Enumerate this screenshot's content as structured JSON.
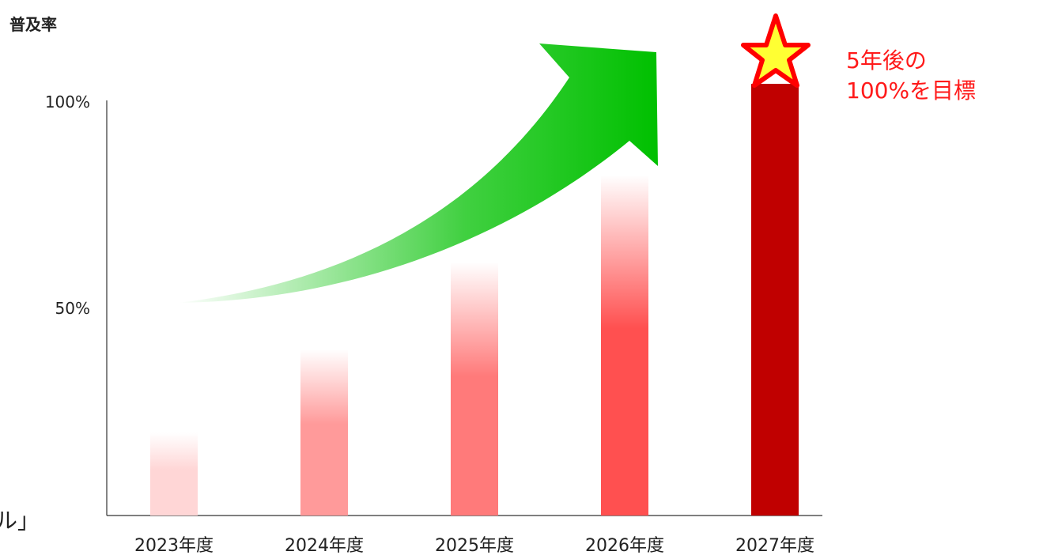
{
  "chart_data": {
    "type": "bar",
    "ylabel": "普及率",
    "xlabel": "",
    "ylim": [
      0,
      100
    ],
    "yticks": [
      {
        "value": 50,
        "label": "50%"
      },
      {
        "value": 100,
        "label": "100%"
      }
    ],
    "categories": [
      "2023年度",
      "2024年度",
      "2025年度",
      "2026年度",
      "2027年度"
    ],
    "values": [
      20,
      40,
      61,
      82,
      104
    ],
    "colors": {
      "bar_gradient_top": [
        "#ffffff",
        "#ffffff",
        "#ffffff",
        "#ffffff",
        "#c00000"
      ],
      "bar_gradient_bottom": [
        "#ffd6d6",
        "#ff9a9a",
        "#ff7a7a",
        "#ff5050",
        "#c00000"
      ],
      "arrow": "#00c000",
      "star_fill": "#ffff33",
      "star_stroke": "#ff0000",
      "goal_text": "#ff1a1a"
    },
    "annotations": {
      "goal_line1": "5年後の",
      "goal_line2": "100%を目標"
    },
    "grid": false,
    "legend": "none"
  },
  "edge_text": "ル」"
}
